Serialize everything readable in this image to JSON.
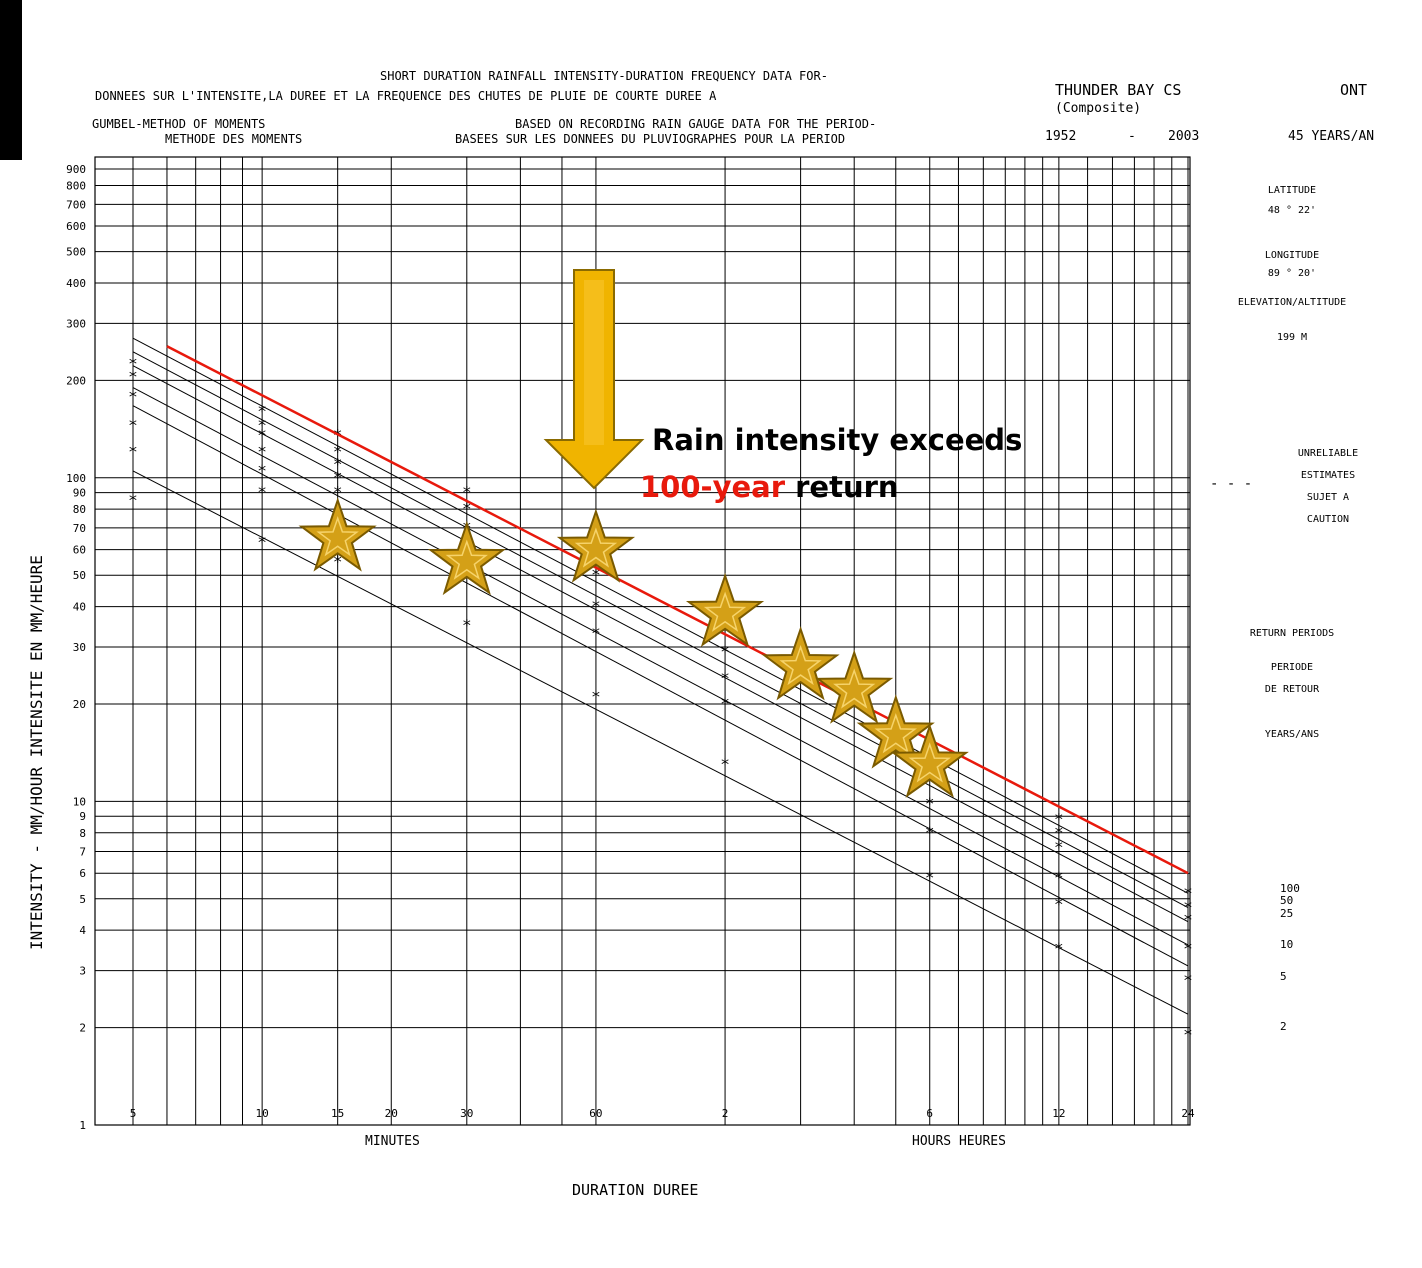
{
  "header": {
    "title_en": "SHORT DURATION RAINFALL INTENSITY-DURATION FREQUENCY DATA FOR-",
    "title_fr": "DONNEES SUR L'INTENSITE,LA DUREE ET LA FREQUENCE DES CHUTES DE PLUIE DE COURTE DUREE A",
    "method_en": "GUMBEL-METHOD OF MOMENTS",
    "method_fr": "METHODE DES MOMENTS",
    "basis_en": "BASED ON RECORDING RAIN GAUGE DATA FOR THE PERIOD-",
    "basis_fr": "BASEES SUR LES DONNEES DU PLUVIOGRAPHES POUR LA PERIOD",
    "station": "THUNDER BAY CS",
    "composite": "(Composite)",
    "province": "ONT",
    "period_start": "1952",
    "period_dash": "-",
    "period_end": "2003",
    "years": "45 YEARS/AN"
  },
  "side_panel": {
    "lat_label": "LATITUDE",
    "lat_value": "48 ° 22'",
    "lon_label": "LONGITUDE",
    "lon_value": "89 ° 20'",
    "elev_label": "ELEVATION/ALTITUDE",
    "elev_value": "199 M",
    "unreliable_1": "UNRELIABLE",
    "unreliable_2": "ESTIMATES",
    "unreliable_3": "SUJET A",
    "unreliable_4": "CAUTION",
    "unreliable_dash": "- - -",
    "return_label": "RETURN PERIODS",
    "periode_1": "PERIODE",
    "periode_2": "DE RETOUR",
    "years_label": "YEARS/ANS"
  },
  "annotation": {
    "line1": "Rain intensity exceeds",
    "line2_red": "100-year",
    "line2_rest": " return",
    "arrow_color": "#f0b400",
    "star_color": "#d4a017",
    "highlight_color": "#e8190c"
  },
  "chart_data": {
    "type": "line",
    "title": "SHORT DURATION RAINFALL INTENSITY-DURATION FREQUENCY DATA FOR-",
    "xlabel": "DURATION   DUREE",
    "xlabel_minutes": "MINUTES",
    "xlabel_hours": "HOURS   HEURES",
    "ylabel": "INTENSITY - MM/HOUR     INTENSITE EN MM/HEURE",
    "x_scale": "log",
    "y_scale": "log",
    "ylim": [
      1,
      900
    ],
    "x_minutes_range": [
      5,
      1440
    ],
    "grid": true,
    "x_ticks": [
      {
        "min": 5,
        "label": "5"
      },
      {
        "min": 10,
        "label": "10"
      },
      {
        "min": 15,
        "label": "15"
      },
      {
        "min": 20,
        "label": "20"
      },
      {
        "min": 30,
        "label": "30"
      },
      {
        "min": 60,
        "label": "60"
      },
      {
        "min": 120,
        "label": "2"
      },
      {
        "min": 360,
        "label": "6"
      },
      {
        "min": 720,
        "label": "12"
      },
      {
        "min": 1440,
        "label": "24"
      }
    ],
    "y_ticks": [
      {
        "v": 1,
        "label": "1"
      },
      {
        "v": 2,
        "label": "2"
      },
      {
        "v": 3,
        "label": "3"
      },
      {
        "v": 4,
        "label": "4"
      },
      {
        "v": 5,
        "label": "5"
      },
      {
        "v": 6,
        "label": "6"
      },
      {
        "v": 7,
        "label": "7"
      },
      {
        "v": 8,
        "label": "8"
      },
      {
        "v": 9,
        "label": "9"
      },
      {
        "v": 10,
        "label": "10"
      },
      {
        "v": 20,
        "label": "20"
      },
      {
        "v": 30,
        "label": "30"
      },
      {
        "v": 40,
        "label": "40"
      },
      {
        "v": 50,
        "label": "50"
      },
      {
        "v": 60,
        "label": "60"
      },
      {
        "v": 70,
        "label": "70"
      },
      {
        "v": 80,
        "label": "80"
      },
      {
        "v": 90,
        "label": "90"
      },
      {
        "v": 100,
        "label": "100"
      },
      {
        "v": 200,
        "label": "200"
      },
      {
        "v": 300,
        "label": "300"
      },
      {
        "v": 400,
        "label": "400"
      },
      {
        "v": 500,
        "label": "500"
      },
      {
        "v": 600,
        "label": "600"
      },
      {
        "v": 700,
        "label": "700"
      },
      {
        "v": 800,
        "label": "800"
      },
      {
        "v": 900,
        "label": "900"
      }
    ],
    "series": [
      {
        "name": "100",
        "x_minutes": [
          5,
          1440
        ],
        "values": [
          270,
          5.2
        ]
      },
      {
        "name": "50",
        "x_minutes": [
          5,
          1440
        ],
        "values": [
          245,
          4.7
        ]
      },
      {
        "name": "25",
        "x_minutes": [
          5,
          1440
        ],
        "values": [
          222,
          4.25
        ]
      },
      {
        "name": "10",
        "x_minutes": [
          5,
          1440
        ],
        "values": [
          190,
          3.6
        ]
      },
      {
        "name": "5",
        "x_minutes": [
          5,
          1440
        ],
        "values": [
          167,
          3.1
        ]
      },
      {
        "name": "2",
        "x_minutes": [
          5,
          1440
        ],
        "values": [
          105,
          2.2
        ]
      }
    ],
    "observed_points": [
      {
        "x_minutes": 5,
        "values": [
          225,
          205,
          178,
          145,
          120,
          85
        ]
      },
      {
        "x_minutes": 10,
        "values": [
          160,
          145,
          135,
          120,
          105,
          90,
          63
        ]
      },
      {
        "x_minutes": 15,
        "values": [
          135,
          120,
          110,
          100,
          90,
          55
        ]
      },
      {
        "x_minutes": 30,
        "values": [
          90,
          80,
          70,
          60,
          35
        ]
      },
      {
        "x_minutes": 60,
        "values": [
          58,
          50,
          40,
          33,
          21
        ]
      },
      {
        "x_minutes": 120,
        "values": [
          34,
          29,
          24,
          20,
          13
        ]
      },
      {
        "x_minutes": 360,
        "values": [
          13,
          9.8,
          8,
          5.8
        ]
      },
      {
        "x_minutes": 720,
        "values": [
          8.8,
          8,
          7.2,
          5.8,
          4.8,
          3.5
        ]
      },
      {
        "x_minutes": 1440,
        "values": [
          5.2,
          4.7,
          4.3,
          3.5,
          2.8,
          1.9
        ]
      }
    ],
    "highlight_line": {
      "x_minutes": [
        6,
        1440
      ],
      "values": [
        255,
        6
      ]
    },
    "event_points": [
      {
        "x_minutes": 15,
        "value": 65
      },
      {
        "x_minutes": 30,
        "value": 55
      },
      {
        "x_minutes": 60,
        "value": 60
      },
      {
        "x_minutes": 120,
        "value": 38
      },
      {
        "x_minutes": 180,
        "value": 26
      },
      {
        "x_minutes": 240,
        "value": 22
      },
      {
        "x_minutes": 300,
        "value": 16
      },
      {
        "x_minutes": 360,
        "value": 13
      }
    ]
  }
}
